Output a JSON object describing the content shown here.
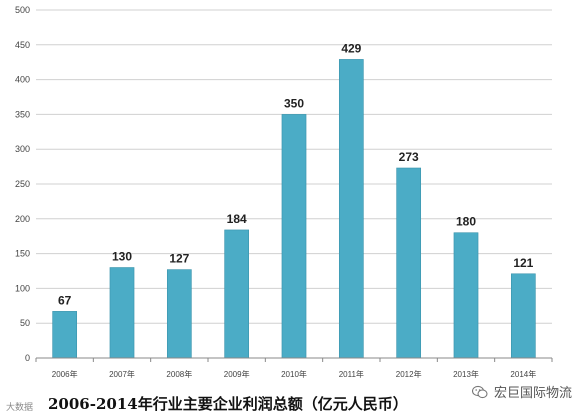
{
  "chart_data": {
    "type": "bar",
    "title": "2006-2014年行业主要企业利润总额（亿元人民币）",
    "xlabel": "",
    "ylabel": "",
    "categories": [
      "2006年",
      "2007年",
      "2008年",
      "2009年",
      "2010年",
      "2011年",
      "2012年",
      "2013年",
      "2014年"
    ],
    "values": [
      67,
      130,
      127,
      184,
      350,
      429,
      273,
      180,
      121
    ],
    "ylim": [
      0,
      500
    ],
    "yticks": [
      0,
      50,
      100,
      150,
      200,
      250,
      300,
      350,
      400,
      450,
      500
    ],
    "grid": true,
    "legend": "none",
    "colors": {
      "bar": "#4bacc6",
      "bar_edge": "#3a93ab",
      "grid": "#d0d0d0",
      "axis": "#888888"
    }
  },
  "watermarks": {
    "left_text": "大数据",
    "right_text": "宏巨国际物流",
    "right_icon": "wechat-icon"
  }
}
